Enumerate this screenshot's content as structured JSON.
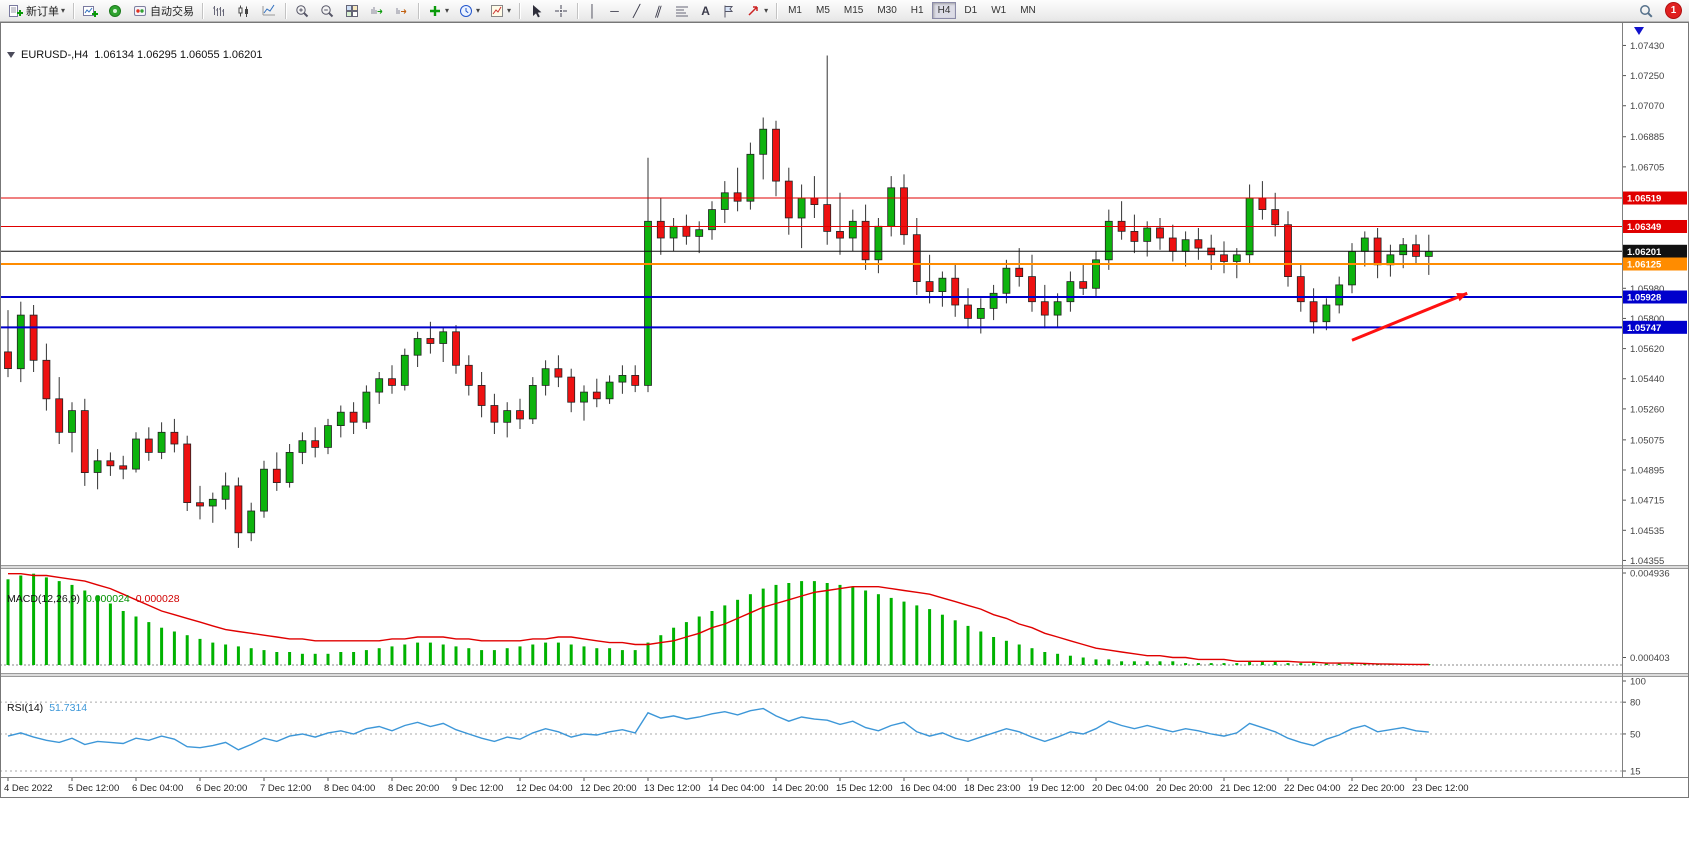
{
  "toolbar": {
    "new_order_label": "新订单",
    "auto_trading_label": "自动交易",
    "timeframes": [
      "M1",
      "M5",
      "M15",
      "M30",
      "H1",
      "H4",
      "D1",
      "W1",
      "MN"
    ],
    "active_timeframe": "H4",
    "notification_count": "1"
  },
  "icons": {
    "dropdown": "▾",
    "vertical_line": "│",
    "horizontal_line": "─",
    "trendline": "╱",
    "channel": "∥",
    "text_tool": "A"
  },
  "chart_data": {
    "type": "candlestick",
    "symbol_period": "EURUSD-,H4",
    "ohlc_display": "1.06134 1.06295 1.06055 1.06201",
    "colors": {
      "bull": "#0db30d",
      "bear": "#ee1111",
      "macd_histogram": "#00b200",
      "macd_signal": "#e00000",
      "rsi_line": "#3d97d8"
    },
    "price_axis": {
      "ticks": [
        "1.07430",
        "1.07250",
        "1.07070",
        "1.06885",
        "1.06705",
        "1.06525",
        "1.06340",
        "1.06160",
        "1.05980",
        "1.05800",
        "1.05620",
        "1.05440",
        "1.05260",
        "1.05075",
        "1.04895",
        "1.04715",
        "1.04535",
        "1.04355"
      ]
    },
    "horizontal_lines": [
      {
        "price": 1.06519,
        "label": "1.06519",
        "color": "#e00000",
        "width": 1
      },
      {
        "price": 1.06349,
        "label": "1.06349",
        "color": "#e00000",
        "width": 1
      },
      {
        "price": 1.06201,
        "label": "1.06201",
        "color": "#111111",
        "width": 1
      },
      {
        "price": 1.06125,
        "label": "1.06125",
        "color": "#ff8c00",
        "width": 2
      },
      {
        "price": 1.05928,
        "label": "1.05928",
        "color": "#0000cc",
        "width": 2
      },
      {
        "price": 1.05747,
        "label": "1.05747",
        "color": "#0000cc",
        "width": 2
      }
    ],
    "arrow_annotation": {
      "from_index": 105,
      "from_price": 1.0567,
      "to_index": 114,
      "to_price": 1.0595,
      "color": "#ff1111"
    },
    "time_labels": [
      "4 Dec 2022",
      "5 Dec 12:00",
      "6 Dec 04:00",
      "6 Dec 20:00",
      "7 Dec 12:00",
      "8 Dec 04:00",
      "8 Dec 20:00",
      "9 Dec 12:00",
      "12 Dec 04:00",
      "12 Dec 20:00",
      "13 Dec 12:00",
      "14 Dec 04:00",
      "14 Dec 20:00",
      "15 Dec 12:00",
      "16 Dec 04:00",
      "18 Dec 23:00",
      "19 Dec 12:00",
      "20 Dec 04:00",
      "20 Dec 20:00",
      "21 Dec 12:00",
      "22 Dec 04:00",
      "22 Dec 20:00",
      "23 Dec 12:00"
    ],
    "candles": [
      [
        1.056,
        1.0585,
        1.0545,
        1.055
      ],
      [
        1.055,
        1.059,
        1.0542,
        1.0582
      ],
      [
        1.0582,
        1.0588,
        1.0548,
        1.0555
      ],
      [
        1.0555,
        1.0565,
        1.0525,
        1.0532
      ],
      [
        1.0532,
        1.0545,
        1.0505,
        1.0512
      ],
      [
        1.0512,
        1.053,
        1.05,
        1.0525
      ],
      [
        1.0525,
        1.0532,
        1.048,
        1.0488
      ],
      [
        1.0488,
        1.0502,
        1.0478,
        1.0495
      ],
      [
        1.0495,
        1.05,
        1.0486,
        1.0492
      ],
      [
        1.0492,
        1.0498,
        1.0484,
        1.049
      ],
      [
        1.049,
        1.0512,
        1.0488,
        1.0508
      ],
      [
        1.0508,
        1.0515,
        1.0495,
        1.05
      ],
      [
        1.05,
        1.0518,
        1.0496,
        1.0512
      ],
      [
        1.0512,
        1.052,
        1.05,
        1.0505
      ],
      [
        1.0505,
        1.051,
        1.0465,
        1.047
      ],
      [
        1.047,
        1.048,
        1.046,
        1.0468
      ],
      [
        1.0468,
        1.0476,
        1.0458,
        1.0472
      ],
      [
        1.0472,
        1.0488,
        1.0466,
        1.048
      ],
      [
        1.048,
        1.0485,
        1.0443,
        1.0452
      ],
      [
        1.0452,
        1.047,
        1.0447,
        1.0465
      ],
      [
        1.0465,
        1.0495,
        1.0461,
        1.049
      ],
      [
        1.049,
        1.05,
        1.0477,
        1.0482
      ],
      [
        1.0482,
        1.0505,
        1.0479,
        1.05
      ],
      [
        1.05,
        1.0512,
        1.0493,
        1.0507
      ],
      [
        1.0507,
        1.0515,
        1.0497,
        1.0503
      ],
      [
        1.0503,
        1.052,
        1.0499,
        1.0516
      ],
      [
        1.0516,
        1.0528,
        1.0509,
        1.0524
      ],
      [
        1.0524,
        1.053,
        1.0511,
        1.0518
      ],
      [
        1.0518,
        1.054,
        1.0514,
        1.0536
      ],
      [
        1.0536,
        1.0548,
        1.0529,
        1.0544
      ],
      [
        1.0544,
        1.0552,
        1.0535,
        1.054
      ],
      [
        1.054,
        1.0562,
        1.0537,
        1.0558
      ],
      [
        1.0558,
        1.0572,
        1.0551,
        1.0568
      ],
      [
        1.0568,
        1.0578,
        1.0559,
        1.0565
      ],
      [
        1.0565,
        1.0575,
        1.0554,
        1.0572
      ],
      [
        1.0572,
        1.0576,
        1.0547,
        1.0552
      ],
      [
        1.0552,
        1.0558,
        1.0534,
        1.054
      ],
      [
        1.054,
        1.0548,
        1.0521,
        1.0528
      ],
      [
        1.0528,
        1.0535,
        1.0511,
        1.0518
      ],
      [
        1.0518,
        1.053,
        1.0509,
        1.0525
      ],
      [
        1.0525,
        1.0532,
        1.0514,
        1.052
      ],
      [
        1.052,
        1.0545,
        1.0517,
        1.054
      ],
      [
        1.054,
        1.0555,
        1.0534,
        1.055
      ],
      [
        1.055,
        1.0558,
        1.0539,
        1.0545
      ],
      [
        1.0545,
        1.055,
        1.0524,
        1.053
      ],
      [
        1.053,
        1.054,
        1.0519,
        1.0536
      ],
      [
        1.0536,
        1.0544,
        1.0527,
        1.0532
      ],
      [
        1.0532,
        1.0546,
        1.0529,
        1.0542
      ],
      [
        1.0542,
        1.0552,
        1.0535,
        1.0546
      ],
      [
        1.0546,
        1.0552,
        1.0536,
        1.054
      ],
      [
        1.054,
        1.0676,
        1.0536,
        1.0638
      ],
      [
        1.0638,
        1.0652,
        1.0618,
        1.0628
      ],
      [
        1.0628,
        1.064,
        1.062,
        1.0635
      ],
      [
        1.0635,
        1.0642,
        1.0624,
        1.0629
      ],
      [
        1.0629,
        1.0638,
        1.0619,
        1.0633
      ],
      [
        1.0633,
        1.065,
        1.0627,
        1.0645
      ],
      [
        1.0645,
        1.0662,
        1.0637,
        1.0655
      ],
      [
        1.0655,
        1.067,
        1.0644,
        1.065
      ],
      [
        1.065,
        1.0685,
        1.0645,
        1.0678
      ],
      [
        1.0678,
        1.07,
        1.0663,
        1.0693
      ],
      [
        1.0693,
        1.0698,
        1.0653,
        1.0662
      ],
      [
        1.0662,
        1.067,
        1.063,
        1.064
      ],
      [
        1.064,
        1.066,
        1.0622,
        1.0652
      ],
      [
        1.0652,
        1.0665,
        1.064,
        1.0648
      ],
      [
        1.0648,
        1.0737,
        1.0624,
        1.0632
      ],
      [
        1.0632,
        1.0655,
        1.0618,
        1.0628
      ],
      [
        1.0628,
        1.0645,
        1.062,
        1.0638
      ],
      [
        1.0638,
        1.0648,
        1.0609,
        1.0615
      ],
      [
        1.0615,
        1.064,
        1.0607,
        1.0635
      ],
      [
        1.0635,
        1.0665,
        1.0629,
        1.0658
      ],
      [
        1.0658,
        1.0666,
        1.0624,
        1.063
      ],
      [
        1.063,
        1.064,
        1.0594,
        1.0602
      ],
      [
        1.0602,
        1.0618,
        1.0589,
        1.0596
      ],
      [
        1.0596,
        1.0608,
        1.0587,
        1.0604
      ],
      [
        1.0604,
        1.0612,
        1.0581,
        1.0588
      ],
      [
        1.0588,
        1.0598,
        1.0574,
        1.058
      ],
      [
        1.058,
        1.0592,
        1.0571,
        1.0586
      ],
      [
        1.0586,
        1.06,
        1.0579,
        1.0595
      ],
      [
        1.0595,
        1.0615,
        1.0589,
        1.061
      ],
      [
        1.061,
        1.0622,
        1.0599,
        1.0605
      ],
      [
        1.0605,
        1.0618,
        1.0584,
        1.059
      ],
      [
        1.059,
        1.06,
        1.0574,
        1.0582
      ],
      [
        1.0582,
        1.0595,
        1.0575,
        1.059
      ],
      [
        1.059,
        1.0608,
        1.0584,
        1.0602
      ],
      [
        1.0602,
        1.0612,
        1.0594,
        1.0598
      ],
      [
        1.0598,
        1.062,
        1.0593,
        1.0615
      ],
      [
        1.0615,
        1.0645,
        1.0609,
        1.0638
      ],
      [
        1.0638,
        1.065,
        1.0627,
        1.0632
      ],
      [
        1.0632,
        1.0642,
        1.0619,
        1.0626
      ],
      [
        1.0626,
        1.0638,
        1.0617,
        1.0634
      ],
      [
        1.0634,
        1.064,
        1.0621,
        1.0628
      ],
      [
        1.0628,
        1.0636,
        1.0614,
        1.062
      ],
      [
        1.062,
        1.0632,
        1.0611,
        1.0627
      ],
      [
        1.0627,
        1.0634,
        1.0615,
        1.0622
      ],
      [
        1.0622,
        1.063,
        1.0609,
        1.0618
      ],
      [
        1.0618,
        1.0626,
        1.0607,
        1.0614
      ],
      [
        1.0614,
        1.0622,
        1.0604,
        1.0618
      ],
      [
        1.0618,
        1.066,
        1.0613,
        1.0652
      ],
      [
        1.0652,
        1.0662,
        1.0639,
        1.0645
      ],
      [
        1.0645,
        1.0655,
        1.0629,
        1.0636
      ],
      [
        1.0636,
        1.0644,
        1.0599,
        1.0605
      ],
      [
        1.0605,
        1.0612,
        1.0584,
        1.059
      ],
      [
        1.059,
        1.0598,
        1.0571,
        1.0578
      ],
      [
        1.0578,
        1.0592,
        1.0573,
        1.0588
      ],
      [
        1.0588,
        1.0605,
        1.0583,
        1.06
      ],
      [
        1.06,
        1.0625,
        1.0595,
        1.062
      ],
      [
        1.062,
        1.0632,
        1.0611,
        1.0628
      ],
      [
        1.0628,
        1.0634,
        1.0604,
        1.0612
      ],
      [
        1.0612,
        1.0624,
        1.0605,
        1.0618
      ],
      [
        1.0618,
        1.0628,
        1.061,
        1.0624
      ],
      [
        1.0624,
        1.063,
        1.0612,
        1.0617
      ],
      [
        1.0617,
        1.063,
        1.0606,
        1.062
      ]
    ],
    "macd": {
      "name": "MACD(12,26,9)",
      "value_main": "0.000024",
      "value_signal": "0.000028",
      "axis_ticks": [
        "0.004936",
        "0.000403"
      ],
      "histogram": [
        0.0046,
        0.0048,
        0.0049,
        0.0047,
        0.0045,
        0.0043,
        0.004,
        0.0037,
        0.0033,
        0.0029,
        0.0026,
        0.0023,
        0.002,
        0.0018,
        0.0016,
        0.0014,
        0.0012,
        0.0011,
        0.001,
        0.0009,
        0.0008,
        0.0007,
        0.0007,
        0.0006,
        0.0006,
        0.0006,
        0.0007,
        0.0007,
        0.0008,
        0.0009,
        0.001,
        0.0011,
        0.0012,
        0.0012,
        0.0011,
        0.001,
        0.0009,
        0.0008,
        0.0008,
        0.0009,
        0.001,
        0.0011,
        0.0012,
        0.0012,
        0.0011,
        0.001,
        0.0009,
        0.0009,
        0.0008,
        0.0008,
        0.0012,
        0.0016,
        0.002,
        0.0023,
        0.0026,
        0.0029,
        0.0032,
        0.0035,
        0.0038,
        0.0041,
        0.0043,
        0.0044,
        0.0045,
        0.0045,
        0.0044,
        0.0043,
        0.0042,
        0.004,
        0.0038,
        0.0036,
        0.0034,
        0.0032,
        0.003,
        0.0027,
        0.0024,
        0.0021,
        0.0018,
        0.0015,
        0.0013,
        0.0011,
        0.0009,
        0.0007,
        0.0006,
        0.0005,
        0.0004,
        0.0003,
        0.0003,
        0.0002,
        0.0002,
        0.0002,
        0.0002,
        0.0002,
        0.0001,
        0.0001,
        0.0001,
        0.0001,
        0.0001,
        0.0002,
        0.0002,
        0.0002,
        0.0001,
        0.0001,
        0.0001,
        0.0001,
        0.0001,
        8e-05,
        6e-05,
        5e-05,
        4e-05,
        3e-05,
        3e-05,
        2.4e-05
      ],
      "signal": [
        0.0049,
        0.0049,
        0.0048,
        0.0048,
        0.0047,
        0.0046,
        0.0045,
        0.0043,
        0.0041,
        0.0038,
        0.0035,
        0.0032,
        0.0029,
        0.0027,
        0.0025,
        0.0023,
        0.0021,
        0.0019,
        0.0018,
        0.0017,
        0.0016,
        0.0015,
        0.0014,
        0.0014,
        0.0013,
        0.0013,
        0.0013,
        0.0013,
        0.0013,
        0.0013,
        0.0014,
        0.0014,
        0.0015,
        0.0015,
        0.0015,
        0.0014,
        0.0014,
        0.0013,
        0.0013,
        0.0013,
        0.0013,
        0.0014,
        0.0014,
        0.0015,
        0.0015,
        0.0014,
        0.0013,
        0.0012,
        0.0012,
        0.0011,
        0.0011,
        0.0012,
        0.0013,
        0.0015,
        0.0017,
        0.002,
        0.0022,
        0.0025,
        0.0028,
        0.0031,
        0.0033,
        0.0035,
        0.0037,
        0.0039,
        0.004,
        0.0041,
        0.0042,
        0.0042,
        0.0042,
        0.0041,
        0.004,
        0.0039,
        0.0038,
        0.0036,
        0.0034,
        0.0032,
        0.003,
        0.0027,
        0.0025,
        0.0022,
        0.002,
        0.0017,
        0.0015,
        0.0013,
        0.0011,
        0.0009,
        0.0008,
        0.0007,
        0.0006,
        0.0005,
        0.0005,
        0.0004,
        0.0004,
        0.0003,
        0.0003,
        0.0003,
        0.0002,
        0.0002,
        0.0002,
        0.0002,
        0.0002,
        0.00015,
        0.00015,
        0.0001,
        0.0001,
        0.0001,
        8e-05,
        6e-05,
        5e-05,
        4e-05,
        3e-05,
        2.8e-05
      ]
    },
    "rsi": {
      "name": "RSI(14)",
      "value": "51.7314",
      "axis_ticks": [
        "100",
        "80",
        "50",
        "15"
      ],
      "levels": [
        80,
        50,
        15
      ],
      "values": [
        48,
        51,
        47,
        44,
        42,
        46,
        40,
        43,
        42,
        41,
        46,
        44,
        48,
        45,
        38,
        37,
        39,
        42,
        35,
        40,
        46,
        43,
        48,
        50,
        47,
        51,
        53,
        50,
        55,
        57,
        53,
        58,
        61,
        57,
        60,
        54,
        50,
        46,
        43,
        47,
        45,
        51,
        55,
        52,
        47,
        50,
        49,
        52,
        54,
        51,
        70,
        65,
        67,
        64,
        66,
        69,
        71,
        68,
        72,
        74,
        67,
        62,
        66,
        64,
        63,
        59,
        62,
        56,
        53,
        58,
        61,
        52,
        48,
        51,
        46,
        43,
        47,
        51,
        55,
        52,
        47,
        43,
        47,
        52,
        50,
        55,
        62,
        58,
        55,
        58,
        55,
        52,
        55,
        53,
        50,
        48,
        51,
        60,
        56,
        52,
        46,
        42,
        39,
        45,
        49,
        55,
        58,
        52,
        54,
        56,
        53,
        51.7
      ]
    }
  }
}
